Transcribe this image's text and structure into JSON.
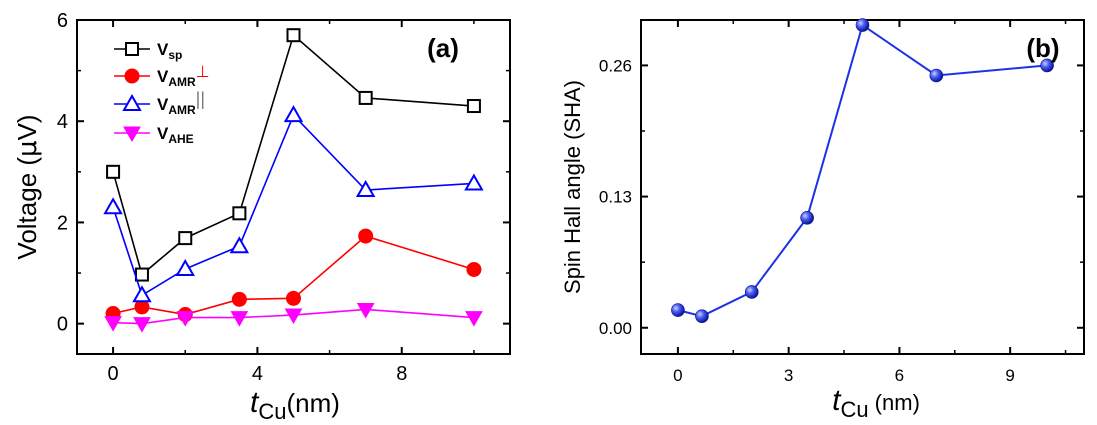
{
  "chart_data": [
    {
      "type": "line",
      "panel_label": "(a)",
      "xlabel": {
        "symbol": "t",
        "sub": "Cu",
        "unit": "(nm)"
      },
      "ylabel": {
        "prefix": "Voltage (",
        "mu": "μ",
        "unit": "V)"
      },
      "xlim": [
        -1,
        11
      ],
      "ylim": [
        -0.6,
        6
      ],
      "xticks": [
        0,
        4,
        8
      ],
      "yticks": [
        0,
        2,
        4,
        6
      ],
      "xtick_labels": [
        "0",
        "4",
        "8"
      ],
      "ytick_labels": [
        "0",
        "2",
        "4",
        "6"
      ],
      "x": [
        0,
        0.8,
        2,
        3.5,
        5,
        7,
        10
      ],
      "series": [
        {
          "name": "Vsp",
          "base": "V",
          "sub": "sp",
          "sup": "",
          "color": "#000000",
          "marker": "square-open",
          "values": [
            3.0,
            0.97,
            1.69,
            2.18,
            5.7,
            4.46,
            4.3
          ]
        },
        {
          "name": "VAMR⊥",
          "base": "V",
          "sub": "AMR",
          "sup": "⊥",
          "color": "#ff0000",
          "marker": "circle-filled",
          "values": [
            0.2,
            0.33,
            0.18,
            0.48,
            0.5,
            1.73,
            1.07
          ]
        },
        {
          "name": "VAMR||",
          "base": "V",
          "sub": "AMR",
          "sup": "||",
          "color": "#0000ff",
          "marker": "triangle-up-open",
          "values": [
            2.3,
            0.56,
            1.08,
            1.53,
            4.12,
            2.64,
            2.77
          ]
        },
        {
          "name": "VAHE",
          "base": "V",
          "sub": "AHE",
          "sup": "",
          "color": "#ff00ff",
          "marker": "triangle-down-filled",
          "values": [
            0.02,
            0.0,
            0.12,
            0.12,
            0.17,
            0.28,
            0.12
          ]
        }
      ],
      "legend_position": "top-left"
    },
    {
      "type": "line",
      "panel_label": "(b)",
      "xlabel": {
        "symbol": "t",
        "sub": "Cu",
        "unit": " (nm)"
      },
      "ylabel": {
        "text": "Spin Hall angle (SHA)"
      },
      "xlim": [
        -1,
        11
      ],
      "ylim": [
        -0.026,
        0.305
      ],
      "xticks": [
        0,
        3,
        6,
        9
      ],
      "yticks": [
        0.0,
        0.13,
        0.26
      ],
      "xtick_labels": [
        "0",
        "3",
        "6",
        "9"
      ],
      "ytick_labels": [
        "0.00",
        "0.13",
        "0.26"
      ],
      "x": [
        0,
        0.65,
        2,
        3.5,
        5,
        7,
        10
      ],
      "series": [
        {
          "name": "SHA",
          "color": "#1a33e6",
          "marker": "sphere",
          "values": [
            0.0175,
            0.0115,
            0.0355,
            0.109,
            0.3,
            0.25,
            0.26
          ]
        }
      ]
    }
  ]
}
